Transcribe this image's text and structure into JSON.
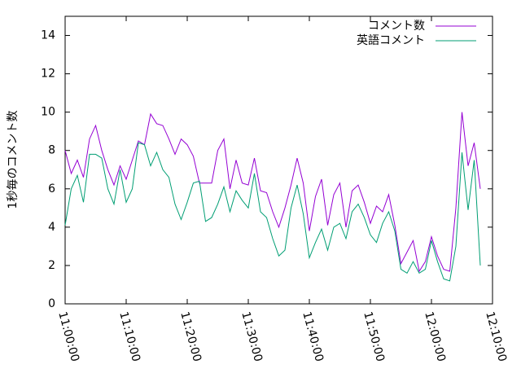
{
  "chart_data": {
    "type": "line",
    "y_label": "1秒毎のコメント数",
    "x": [
      "11:00:00",
      "11:01:00",
      "11:02:00",
      "11:03:00",
      "11:04:00",
      "11:05:00",
      "11:06:00",
      "11:07:00",
      "11:08:00",
      "11:09:00",
      "11:10:00",
      "11:11:00",
      "11:12:00",
      "11:13:00",
      "11:14:00",
      "11:15:00",
      "11:16:00",
      "11:17:00",
      "11:18:00",
      "11:19:00",
      "11:20:00",
      "11:21:00",
      "11:22:00",
      "11:23:00",
      "11:24:00",
      "11:25:00",
      "11:26:00",
      "11:27:00",
      "11:28:00",
      "11:29:00",
      "11:30:00",
      "11:31:00",
      "11:32:00",
      "11:33:00",
      "11:34:00",
      "11:35:00",
      "11:36:00",
      "11:37:00",
      "11:38:00",
      "11:39:00",
      "11:40:00",
      "11:41:00",
      "11:42:00",
      "11:43:00",
      "11:44:00",
      "11:45:00",
      "11:46:00",
      "11:47:00",
      "11:48:00",
      "11:49:00",
      "11:50:00",
      "11:51:00",
      "11:52:00",
      "11:53:00",
      "11:54:00",
      "11:55:00",
      "11:56:00",
      "11:57:00",
      "11:58:00",
      "11:59:00",
      "12:00:00",
      "12:01:00",
      "12:02:00",
      "12:03:00",
      "12:04:00",
      "12:05:00",
      "12:06:00",
      "12:07:00",
      "12:08:00"
    ],
    "series": [
      {
        "name": "コメント数",
        "color": "#9400d3",
        "values": [
          8.0,
          6.8,
          7.5,
          6.6,
          8.6,
          9.3,
          8.0,
          7.0,
          6.2,
          7.2,
          6.5,
          7.5,
          8.5,
          8.3,
          9.9,
          9.4,
          9.3,
          8.6,
          7.8,
          8.6,
          8.3,
          7.7,
          6.3,
          6.3,
          6.3,
          8.0,
          8.6,
          6.0,
          7.5,
          6.3,
          6.2,
          7.6,
          5.9,
          5.8,
          4.8,
          4.0,
          5.0,
          6.2,
          7.6,
          6.3,
          3.8,
          5.6,
          6.5,
          4.1,
          5.7,
          6.3,
          4.0,
          5.9,
          6.2,
          5.3,
          4.2,
          5.1,
          4.8,
          5.7,
          4.1,
          2.1,
          2.7,
          3.3,
          1.7,
          2.2,
          3.5,
          2.5,
          1.8,
          1.7,
          5.0,
          10.0,
          7.2,
          8.4,
          6.0
        ]
      },
      {
        "name": "英語コメント",
        "color": "#009e73",
        "values": [
          4.1,
          6.0,
          6.7,
          5.3,
          7.8,
          7.8,
          7.6,
          6.0,
          5.2,
          7.0,
          5.3,
          6.0,
          8.4,
          8.3,
          7.2,
          7.9,
          7.0,
          6.6,
          5.2,
          4.4,
          5.3,
          6.3,
          6.4,
          4.3,
          4.5,
          5.2,
          6.1,
          4.8,
          5.9,
          5.4,
          5.0,
          6.8,
          4.8,
          4.5,
          3.4,
          2.5,
          2.8,
          5.0,
          6.2,
          4.7,
          2.4,
          3.2,
          3.9,
          2.8,
          4.0,
          4.2,
          3.4,
          4.8,
          5.2,
          4.5,
          3.6,
          3.2,
          4.2,
          4.8,
          3.8,
          1.8,
          1.6,
          2.2,
          1.6,
          1.8,
          3.3,
          2.2,
          1.3,
          1.2,
          3.0,
          7.9,
          4.9,
          7.5,
          2.0
        ]
      }
    ],
    "xlim": [
      "11:00:00",
      "12:10:00"
    ],
    "xticks": [
      "11:00:00",
      "11:10:00",
      "11:20:00",
      "11:30:00",
      "11:40:00",
      "11:50:00",
      "12:00:00",
      "12:10:00"
    ],
    "ylim": [
      0,
      15
    ],
    "yticks": [
      0,
      2,
      4,
      6,
      8,
      10,
      12,
      14
    ],
    "legend": "top-right"
  }
}
